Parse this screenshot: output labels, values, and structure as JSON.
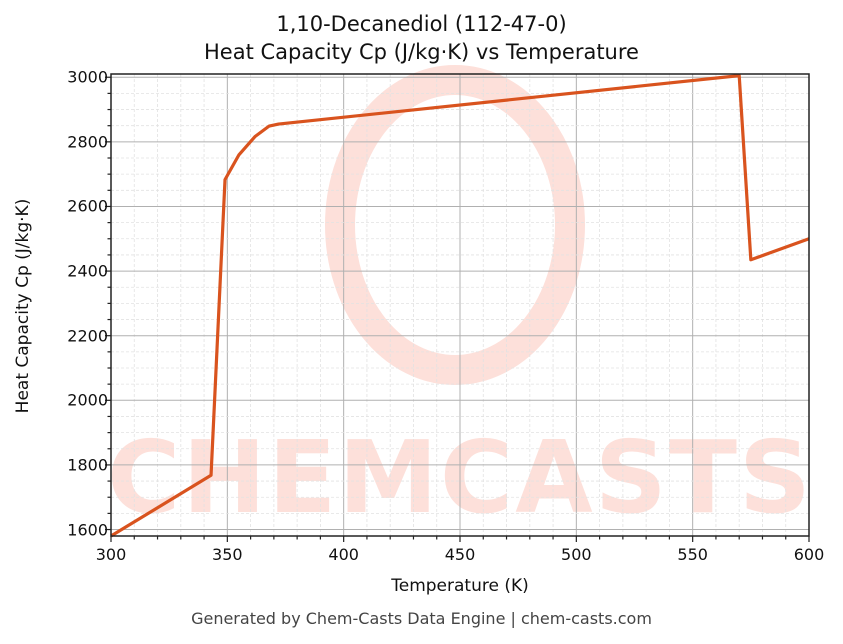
{
  "title_line1": "1,10-Decanediol (112-47-0)",
  "title_line2": "Heat Capacity Cp (J/kg·K) vs Temperature",
  "xlabel": "Temperature (K)",
  "ylabel": "Heat Capacity Cp (J/kg·K)",
  "footer": "Generated by Chem-Casts Data Engine | chem-casts.com",
  "watermark": "CHEMCASTS",
  "line_color": "#d9531e",
  "x_ticks": [
    "300",
    "350",
    "400",
    "450",
    "500",
    "550",
    "600"
  ],
  "y_ticks": [
    "1600",
    "1800",
    "2000",
    "2200",
    "2400",
    "2600",
    "2800",
    "3000"
  ],
  "chart_data": {
    "type": "line",
    "title": "1,10-Decanediol (112-47-0) Heat Capacity Cp (J/kg·K) vs Temperature",
    "xlabel": "Temperature (K)",
    "ylabel": "Heat Capacity Cp (J/kg·K)",
    "xlim": [
      300,
      600
    ],
    "ylim": [
      1580,
      3010
    ],
    "grid": true,
    "series": [
      {
        "name": "Cp",
        "x": [
          300,
          343,
          349,
          355,
          362,
          368,
          372,
          570,
          575,
          600
        ],
        "y": [
          1580,
          1768,
          2683,
          2760,
          2817,
          2849,
          2855,
          3005,
          2435,
          2500
        ]
      }
    ]
  }
}
